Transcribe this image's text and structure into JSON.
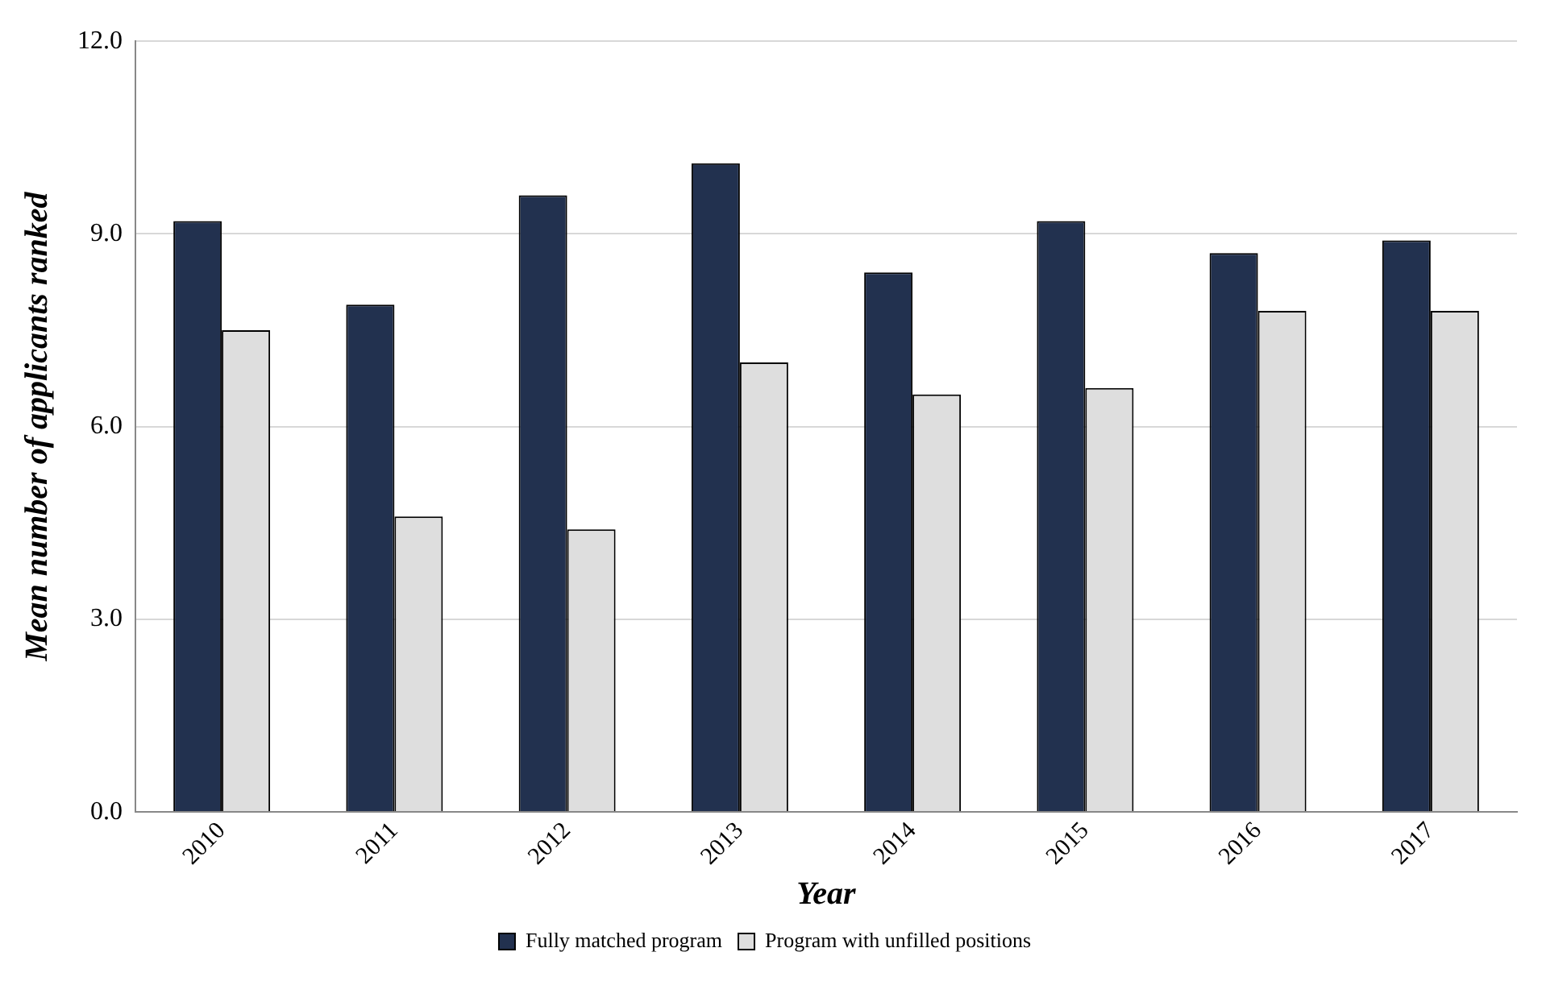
{
  "chart_data": {
    "type": "bar",
    "xlabel": "Year",
    "ylabel": "Mean number of applicants ranked",
    "categories": [
      "2010",
      "2011",
      "2012",
      "2013",
      "2014",
      "2015",
      "2016",
      "2017"
    ],
    "series": [
      {
        "name": "Fully matched program",
        "color": "#22314f",
        "values": [
          9.2,
          7.9,
          9.6,
          10.1,
          8.4,
          9.2,
          8.7,
          8.9
        ]
      },
      {
        "name": "Program with unfilled positions",
        "color": "#dedede",
        "values": [
          7.5,
          4.6,
          4.4,
          7.0,
          6.5,
          6.6,
          7.8,
          7.8
        ]
      }
    ],
    "ylim": [
      0,
      12
    ],
    "yticks": [
      {
        "value": 0,
        "label": "0.0"
      },
      {
        "value": 3,
        "label": "3.0"
      },
      {
        "value": 6,
        "label": "6.0"
      },
      {
        "value": 9,
        "label": "9.0"
      },
      {
        "value": 12,
        "label": "12.0"
      }
    ],
    "grid": "y",
    "legend": "bottom"
  }
}
